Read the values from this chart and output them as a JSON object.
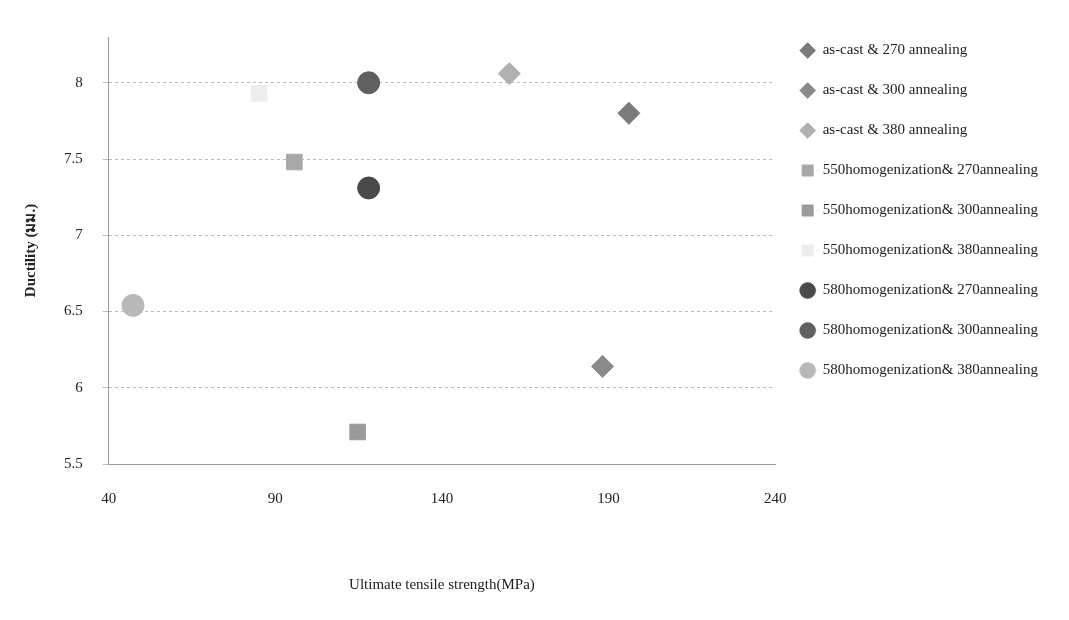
{
  "chart_data": {
    "type": "scatter",
    "xlabel": "Ultimate tensile strength(MPa)",
    "ylabel": "Ductility (มม.)",
    "xlim": [
      40,
      240
    ],
    "xticks": [
      40,
      90,
      140,
      190,
      240
    ],
    "ylim": [
      5.5,
      8.3
    ],
    "yticks": [
      5.5,
      6,
      6.5,
      7,
      7.5,
      8
    ],
    "grid": "y",
    "legend": "right",
    "series": [
      {
        "name": "as-cast & 270 annealing",
        "color": "#7a7a7a",
        "marker": "diamond",
        "x": [
          196.1
        ],
        "values": [
          7.8
        ]
      },
      {
        "name": "as-cast & 300 annealing",
        "color": "#8a8a8a",
        "marker": "diamond",
        "x": [
          188.2
        ],
        "values": [
          6.14
        ]
      },
      {
        "name": "as-cast & 380 annealing",
        "color": "#b0b0b0",
        "marker": "diamond",
        "x": [
          160.2
        ],
        "values": [
          8.06
        ]
      },
      {
        "name": "550homogenization& 270annealing",
        "color": "#a8a8a8",
        "marker": "square",
        "x": [
          95.7
        ],
        "values": [
          7.48
        ]
      },
      {
        "name": "550homogenization& 300annealing",
        "color": "#9a9a9a",
        "marker": "square",
        "x": [
          114.7
        ],
        "values": [
          5.71
        ]
      },
      {
        "name": "550homogenization& 380annealing",
        "color": "#ececec",
        "marker": "square",
        "x": [
          85.1
        ],
        "values": [
          7.93
        ]
      },
      {
        "name": "580homogenization& 270annealing",
        "color": "#4a4a4a",
        "marker": "circle",
        "x": [
          118
        ],
        "values": [
          7.31
        ]
      },
      {
        "name": "580homogenization& 300annealing",
        "color": "#606060",
        "marker": "circle",
        "x": [
          118
        ],
        "values": [
          8.0
        ]
      },
      {
        "name": "580homogenization& 380annealing",
        "color": "#b8b8b8",
        "marker": "circle",
        "x": [
          47.3
        ],
        "values": [
          6.54
        ]
      }
    ]
  }
}
